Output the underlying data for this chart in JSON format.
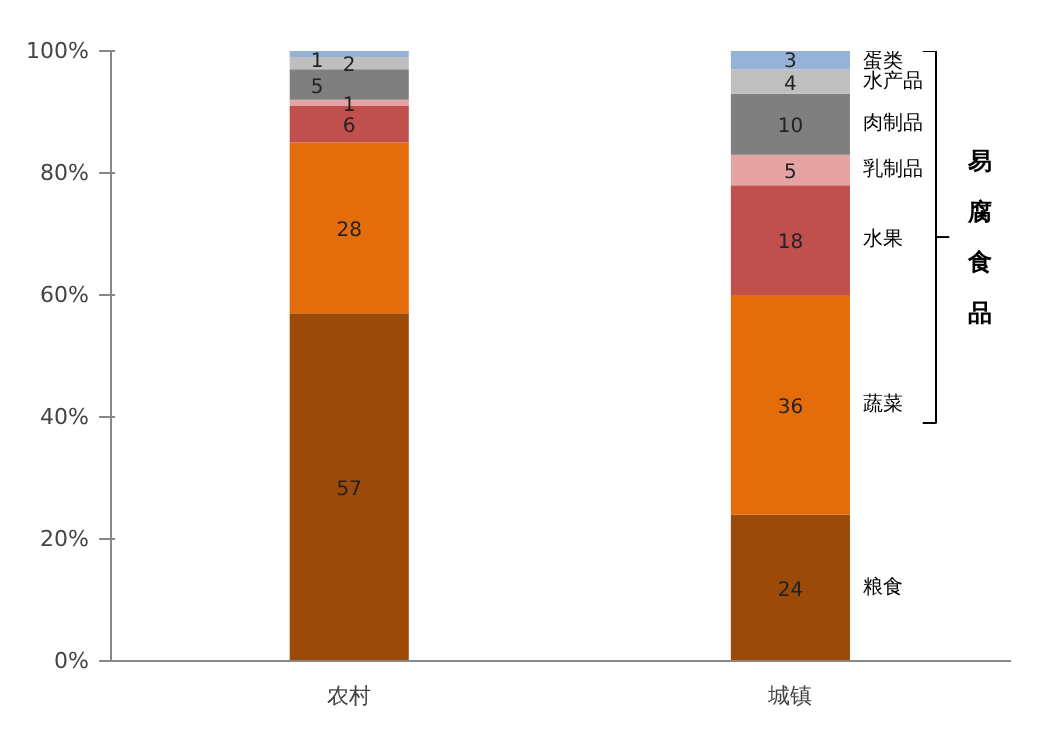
{
  "chart_data": {
    "type": "bar",
    "stacked": true,
    "categories": [
      "农村",
      "城镇"
    ],
    "series": [
      {
        "name": "粮食",
        "color": "#9c4a0a",
        "values": [
          57,
          24
        ]
      },
      {
        "name": "蔬菜",
        "color": "#e46c0a",
        "values": [
          28,
          36
        ]
      },
      {
        "name": "水果",
        "color": "#c0504d",
        "values": [
          6,
          18
        ]
      },
      {
        "name": "乳制品",
        "color": "#e6a3a3",
        "values": [
          1,
          5
        ]
      },
      {
        "name": "肉制品",
        "color": "#7f7f7f",
        "values": [
          5,
          10
        ]
      },
      {
        "name": "水产品",
        "color": "#bfbfbf",
        "values": [
          2,
          4
        ]
      },
      {
        "name": "蛋类",
        "color": "#95b3d7",
        "values": [
          1,
          3
        ]
      }
    ],
    "ylim": [
      0,
      100
    ],
    "yticks": [
      {
        "value": 0,
        "label": "0%"
      },
      {
        "value": 20,
        "label": "20%"
      },
      {
        "value": 40,
        "label": "40%"
      },
      {
        "value": 60,
        "label": "60%"
      },
      {
        "value": 80,
        "label": "80%"
      },
      {
        "value": 100,
        "label": "100%"
      }
    ],
    "data_labels": true,
    "annotations": [
      "易腐食品"
    ]
  }
}
